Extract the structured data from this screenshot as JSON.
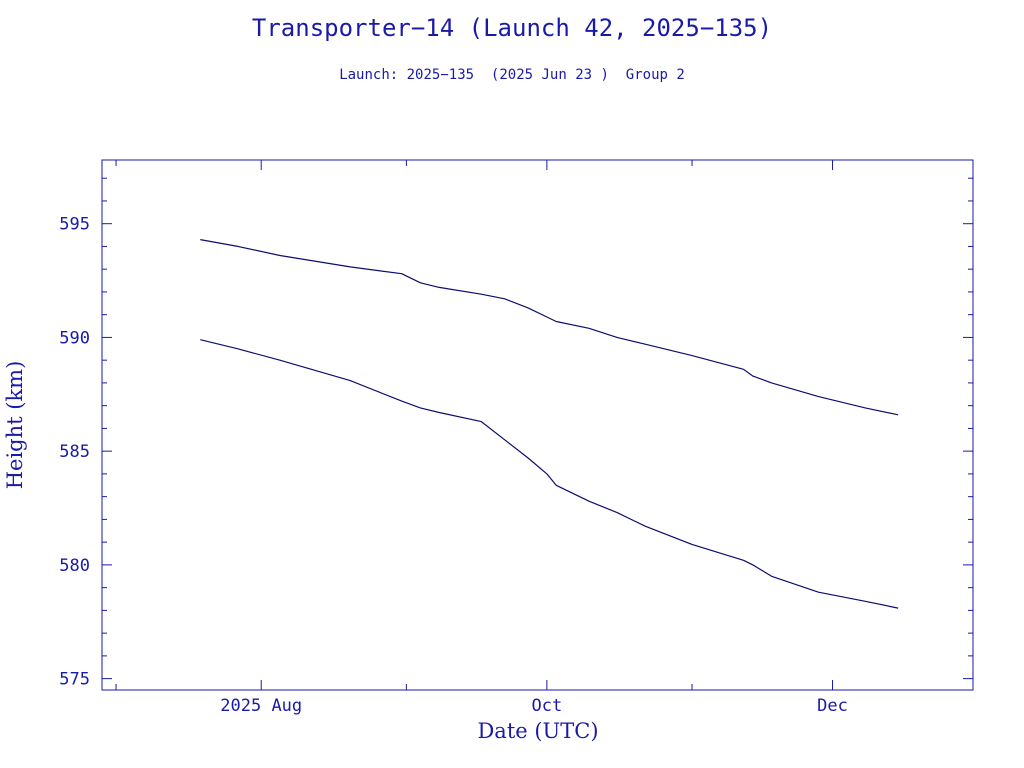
{
  "header": {
    "title": "Transporter−14 (Launch 42, 2025−135)",
    "subtitle": "Launch: 2025−135  (2025 Jun 23 )  Group 2"
  },
  "colors": {
    "line": "#0d0d6e",
    "axis": "#1a1aa8",
    "background": "#ffffff"
  },
  "chart_data": {
    "type": "line",
    "xlabel": "Date (UTC)",
    "ylabel": "Height (km)",
    "ylim": [
      574.5,
      597.8
    ],
    "xlim": [
      "2025-06-28",
      "2025-12-31"
    ],
    "grid": false,
    "yticks": [
      575,
      580,
      585,
      590,
      595
    ],
    "xticks": [
      {
        "date": "2025-08-01",
        "label": "2025 Aug"
      },
      {
        "date": "2025-10-01",
        "label": "Oct"
      },
      {
        "date": "2025-12-01",
        "label": "Dec"
      }
    ],
    "series": [
      {
        "x": [
          "2025-07-19",
          "2025-07-27",
          "2025-08-05",
          "2025-08-20",
          "2025-08-31",
          "2025-09-04",
          "2025-09-08",
          "2025-09-17",
          "2025-09-22",
          "2025-09-27",
          "2025-10-01",
          "2025-10-03",
          "2025-10-10",
          "2025-10-16",
          "2025-10-22",
          "2025-11-01",
          "2025-11-12",
          "2025-11-14",
          "2025-11-18",
          "2025-11-28",
          "2025-12-08",
          "2025-12-15"
        ],
        "y": [
          594.3,
          594.0,
          593.6,
          593.1,
          592.8,
          592.4,
          592.2,
          591.9,
          591.7,
          591.3,
          590.9,
          590.7,
          590.4,
          590.0,
          589.7,
          589.2,
          588.6,
          588.3,
          588.0,
          587.4,
          586.9,
          586.6
        ]
      },
      {
        "x": [
          "2025-07-19",
          "2025-07-27",
          "2025-08-05",
          "2025-08-20",
          "2025-08-31",
          "2025-09-04",
          "2025-09-08",
          "2025-09-17",
          "2025-09-22",
          "2025-09-27",
          "2025-10-01",
          "2025-10-03",
          "2025-10-10",
          "2025-10-16",
          "2025-10-22",
          "2025-11-01",
          "2025-11-12",
          "2025-11-14",
          "2025-11-18",
          "2025-11-28",
          "2025-12-08",
          "2025-12-15"
        ],
        "y": [
          589.9,
          589.5,
          589.0,
          588.1,
          587.2,
          586.9,
          586.7,
          586.3,
          585.5,
          584.7,
          584.0,
          583.5,
          582.8,
          582.3,
          581.7,
          580.9,
          580.2,
          580.0,
          579.5,
          578.8,
          578.4,
          578.1
        ]
      }
    ]
  }
}
